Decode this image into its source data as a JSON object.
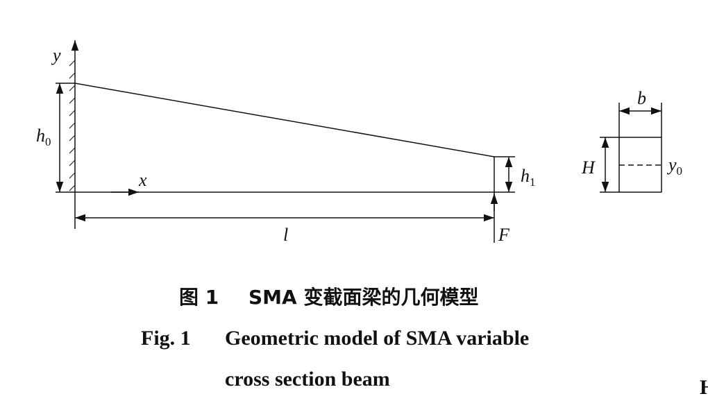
{
  "diagram": {
    "labels": {
      "y_axis": "y",
      "x_axis": "x",
      "h0": {
        "main": "h",
        "sub": "0"
      },
      "h1": {
        "main": "h",
        "sub": "1"
      },
      "length": "l",
      "force": "F",
      "width": "b",
      "height": "H",
      "y0": {
        "main": "y",
        "sub": "0"
      }
    },
    "caption_cn": {
      "number": "图 1",
      "text": "SMA 变截面梁的几何模型"
    },
    "caption_en": {
      "number": "Fig. 1",
      "line1": "Geometric model of SMA variable",
      "line2": "cross section beam"
    },
    "edge_fragment": "H"
  }
}
